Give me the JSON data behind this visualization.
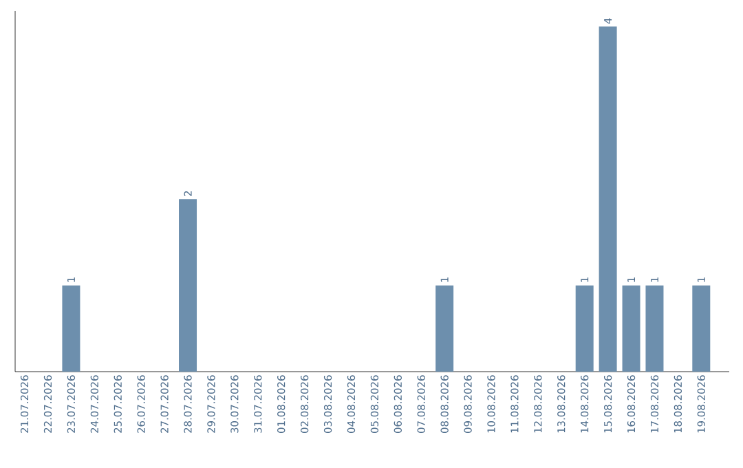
{
  "chart_data": {
    "type": "bar",
    "categories": [
      "21.07.2026",
      "22.07.2026",
      "23.07.2026",
      "24.07.2026",
      "25.07.2026",
      "26.07.2026",
      "27.07.2026",
      "28.07.2026",
      "29.07.2026",
      "30.07.2026",
      "31.07.2026",
      "01.08.2026",
      "02.08.2026",
      "03.08.2026",
      "04.08.2026",
      "05.08.2026",
      "06.08.2026",
      "07.08.2026",
      "08.08.2026",
      "09.08.2026",
      "10.08.2026",
      "11.08.2026",
      "12.08.2026",
      "13.08.2026",
      "14.08.2026",
      "15.08.2026",
      "16.08.2026",
      "17.08.2026",
      "18.08.2026",
      "19.08.2026"
    ],
    "values": [
      0,
      0,
      1,
      0,
      0,
      0,
      0,
      2,
      0,
      0,
      0,
      0,
      0,
      0,
      0,
      0,
      0,
      0,
      1,
      0,
      0,
      0,
      0,
      0,
      1,
      4,
      1,
      1,
      0,
      1
    ],
    "value_labels": [
      null,
      null,
      "1",
      null,
      null,
      null,
      null,
      "2",
      null,
      null,
      null,
      null,
      null,
      null,
      null,
      null,
      null,
      null,
      "1",
      null,
      null,
      null,
      null,
      null,
      "1",
      "4",
      "1",
      "1",
      null,
      "1"
    ],
    "color": "#6d8fad"
  }
}
